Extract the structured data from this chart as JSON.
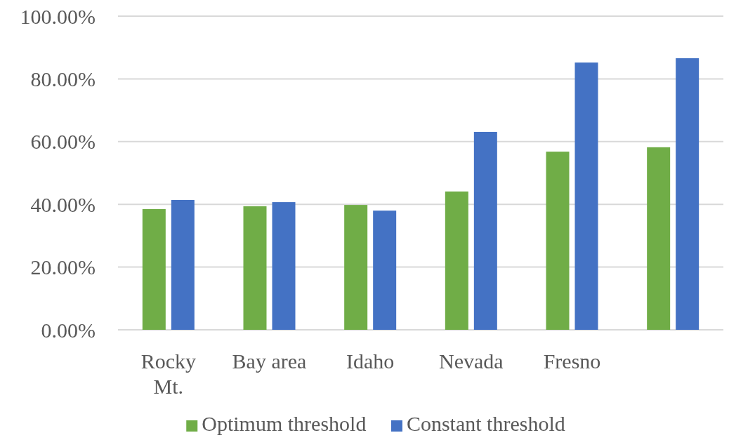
{
  "chart_data": {
    "type": "bar",
    "categories": [
      "Rocky Mt.",
      "Bay area",
      "Idaho",
      "Nevada",
      "Fresno",
      null
    ],
    "series": [
      {
        "name": "Optimum threshold",
        "color": "#70ad47",
        "values": [
          38.5,
          39.4,
          39.8,
          44.1,
          56.8,
          58.2
        ]
      },
      {
        "name": "Constant threshold",
        "color": "#4472c4",
        "values": [
          41.4,
          40.7,
          38.0,
          63.1,
          85.2,
          86.6
        ]
      }
    ],
    "ylim": [
      0,
      100
    ],
    "yticks": [
      {
        "value": 0,
        "label": "0.00%"
      },
      {
        "value": 20,
        "label": "20.00%"
      },
      {
        "value": 40,
        "label": "40.00%"
      },
      {
        "value": 60,
        "label": "60.00%"
      },
      {
        "value": 80,
        "label": "80.00%"
      },
      {
        "value": 100,
        "label": "100.00%"
      }
    ],
    "grid": "y",
    "legend": "bottom"
  }
}
